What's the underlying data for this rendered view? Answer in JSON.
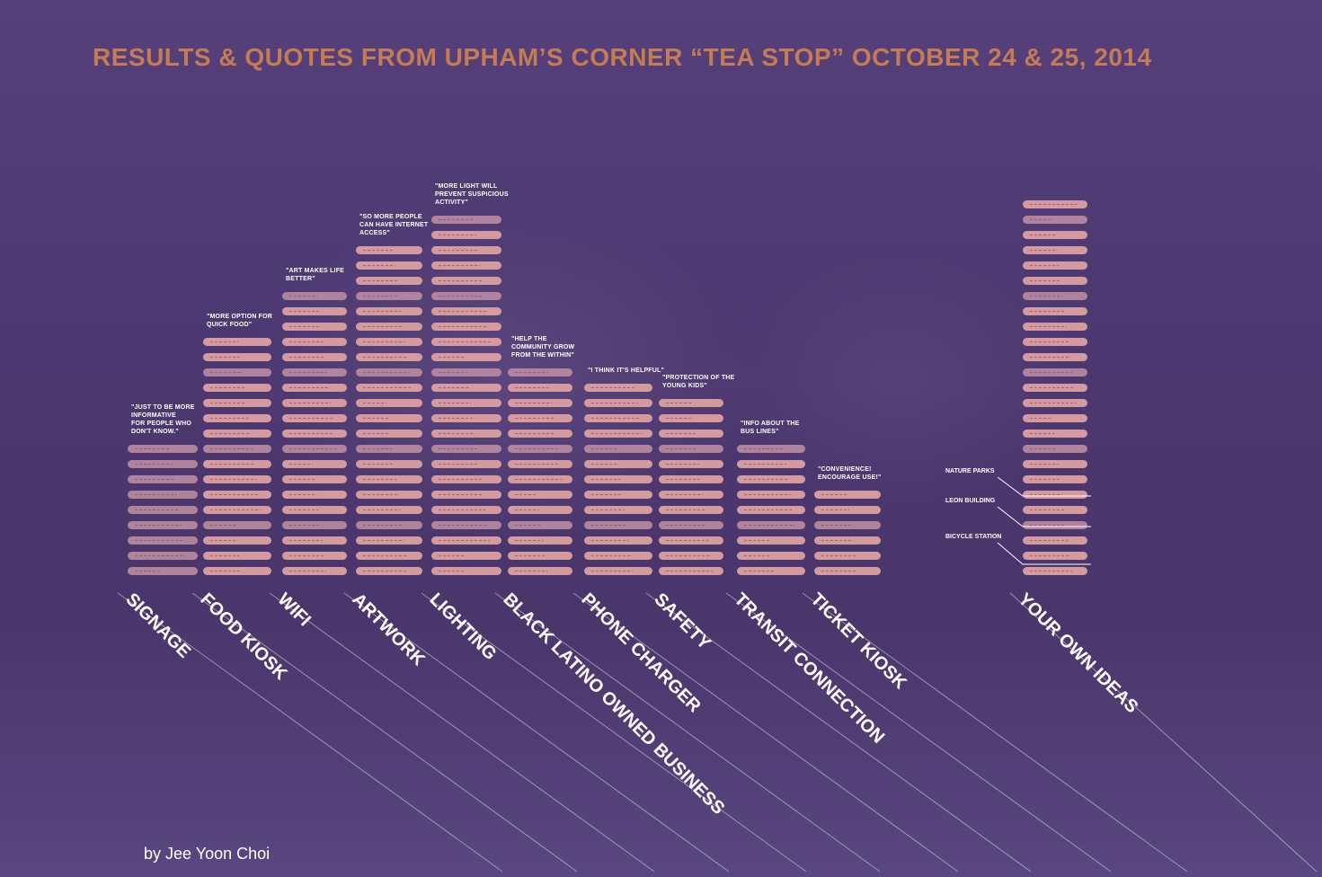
{
  "title": "RESULTS & QUOTES FROM UPHAM’S CORNER “TEA STOP” OCTOBER 24 & 25, 2014",
  "credit": "by Jee Yoon Choi",
  "colors": {
    "background": "#4e3a6e",
    "title": "#c57b54",
    "stick": "#e0a3a3",
    "stick_faded": "#b98a9f",
    "text": "#ffffff"
  },
  "chart_data": {
    "type": "bar",
    "categories": [
      "SIGNAGE",
      "FOOD KIOSK",
      "WIFI",
      "ARTWORK",
      "LIGHTING",
      "BLACK LATINO OWNED BUSINESS",
      "PHONE CHARGER",
      "SAFETY",
      "TRANSIT CONNECTION",
      "TICKET KIOSK",
      "YOUR OWN IDEAS"
    ],
    "values": [
      9,
      16,
      19,
      22,
      24,
      14,
      13,
      12,
      9,
      6,
      25
    ],
    "quotes": [
      "\"JUST TO BE MORE\nINFORMATIVE\nFOR PEOPLE WHO\nDON'T KNOW.\"",
      "\"MORE OPTION FOR\nQUICK FOOD\"",
      "\"ART MAKES LIFE\nBETTER\"",
      "\"SO MORE PEOPLE\nCAN HAVE INTERNET\nACCESS\"",
      "\"MORE LIGHT WILL\nPREVENT SUSPICIOUS\nACTIVITY\"",
      "\"HELP THE\nCOMMUNITY GROW\nFROM THE WITHIN\"",
      "\"I THINK IT'S HELPFUL\"",
      "\"PROTECTION OF THE\nYOUNG KIDS\"",
      "\"INFO ABOUT THE\nBUS LINES\"",
      "\"CONVENIENCE!\nENCOURAGE USE!\"",
      ""
    ],
    "annotations": [
      "NATURE PARKS",
      "LEON BUILDING",
      "BICYCLE STATION"
    ],
    "xlabel": "",
    "ylabel": ""
  }
}
